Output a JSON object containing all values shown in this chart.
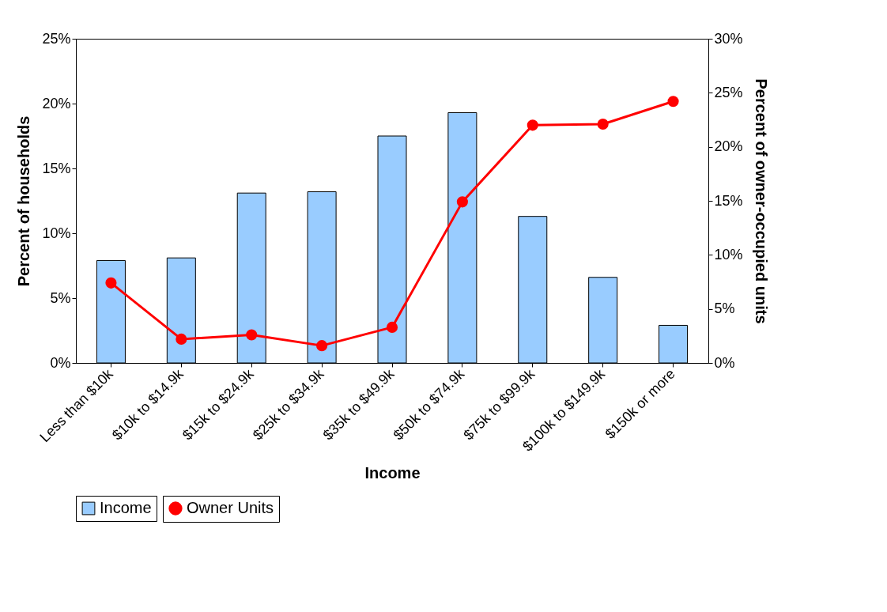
{
  "chart_data": {
    "type": "bar",
    "categories": [
      "Less than $10k",
      "$10k to $14.9k",
      "$15k to $24.9k",
      "$25k to $34.9k",
      "$35k to $49.9k",
      "$50k to $74.9k",
      "$75k to $99.9k",
      "$100k to $149.9k",
      "$150k or more"
    ],
    "xlabel": "Income",
    "ylabel": "Percent of households",
    "y2label": "Percent of owner-occupied units",
    "series": [
      {
        "name": "Income",
        "color": "#99ccff",
        "values": [
          7.9,
          8.1,
          13.1,
          13.2,
          17.5,
          19.3,
          11.3,
          6.6,
          2.9
        ]
      },
      {
        "name": "Owner Units",
        "type": "line",
        "axis": "y2",
        "color": "#ff0000",
        "marker": "circle",
        "line_style": "solid",
        "values": [
          7.4,
          2.2,
          2.6,
          1.6,
          3.3,
          14.9,
          22.0,
          22.1,
          24.2
        ]
      }
    ],
    "ylim": [
      0,
      25
    ],
    "yticks": [
      {
        "value": 0,
        "label": "0%"
      },
      {
        "value": 5,
        "label": "5%"
      },
      {
        "value": 10,
        "label": "10%"
      },
      {
        "value": 15,
        "label": "15%"
      },
      {
        "value": 20,
        "label": "20%"
      },
      {
        "value": 25,
        "label": "25%"
      }
    ],
    "y2lim": [
      0,
      30
    ],
    "y2ticks": [
      {
        "value": 0,
        "label": "0%"
      },
      {
        "value": 5,
        "label": "5%"
      },
      {
        "value": 10,
        "label": "10%"
      },
      {
        "value": 15,
        "label": "15%"
      },
      {
        "value": 20,
        "label": "20%"
      },
      {
        "value": 25,
        "label": "25%"
      },
      {
        "value": 30,
        "label": "30%"
      }
    ],
    "grid": false,
    "legend": "bottom"
  }
}
